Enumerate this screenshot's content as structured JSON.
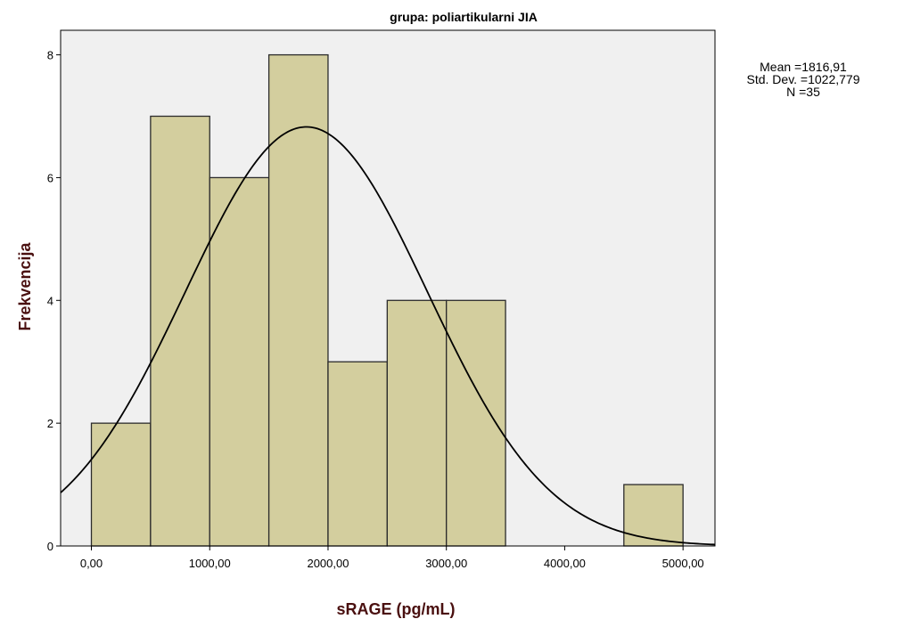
{
  "colors": {
    "bar_fill": "#D3CE9E",
    "bar_stroke": "#2B2B2B",
    "plot_background": "#F0F0F0",
    "curve": "#000000",
    "axis_title": "#4A1010"
  },
  "chart_data": {
    "type": "bar",
    "subtype": "histogram",
    "title": "grupa: poliartikularni JIA",
    "xlabel": "sRAGE (pg/mL)",
    "ylabel": "Frekvencija",
    "bin_edges": [
      0,
      500,
      1000,
      1500,
      2000,
      2500,
      3000,
      3500,
      4000,
      4500,
      5000
    ],
    "values": [
      2,
      7,
      6,
      8,
      3,
      4,
      4,
      0,
      0,
      1
    ],
    "xlim": [
      -260,
      5270
    ],
    "ylim": [
      0,
      8.4
    ],
    "xticks": [
      0,
      1000,
      2000,
      3000,
      4000,
      5000
    ],
    "xtick_labels": [
      "0,00",
      "1000,00",
      "2000,00",
      "3000,00",
      "4000,00",
      "5000,00"
    ],
    "yticks": [
      0,
      2,
      4,
      6,
      8
    ],
    "ytick_labels": [
      "0",
      "2",
      "4",
      "6",
      "8"
    ],
    "normal_curve": {
      "mean": 1816.91,
      "std": 1022.779,
      "n": 35,
      "bin_width": 500
    },
    "stats": {
      "mean_label": "Mean =1816,91",
      "std_label": "Std. Dev. =1022,779",
      "n_label": "N =35"
    },
    "grid": false,
    "legend": "none"
  }
}
